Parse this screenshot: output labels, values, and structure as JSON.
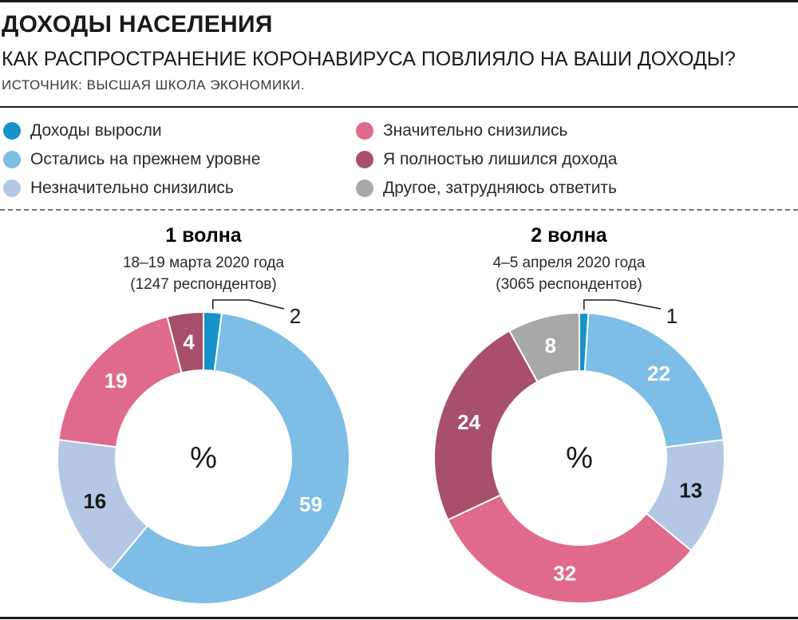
{
  "header": {
    "title": "ДОХОДЫ НАСЕЛЕНИЯ",
    "subtitle": "КАК РАСПРОСТРАНЕНИЕ КОРОНАВИРУСА ПОВЛИЯЛО НА ВАШИ ДОХОДЫ?",
    "source": "ИСТОЧНИК: ВЫСШАЯ ШКОЛА ЭКОНОМИКИ."
  },
  "legend": [
    {
      "label": "Доходы выросли",
      "color": "#1793c9"
    },
    {
      "label": "Остались на прежнем уровне",
      "color": "#7dbde6"
    },
    {
      "label": "Незначительно снизились",
      "color": "#b4c8e6"
    },
    {
      "label": "Значительно снизились",
      "color": "#e06a8b"
    },
    {
      "label": "Я полностью лишился дохода",
      "color": "#a8506b"
    },
    {
      "label": "Другое, затрудняюсь ответить",
      "color": "#a8a8a8"
    }
  ],
  "chart_data": [
    {
      "type": "pie",
      "title": "1 волна",
      "dates": "18–19 марта 2020 года",
      "respondents": "(1247 респондентов)",
      "center_label": "%",
      "categories": [
        "Доходы выросли",
        "Остались на прежнем уровне",
        "Незначительно снизились",
        "Значительно снизились",
        "Я полностью лишился дохода"
      ],
      "values": [
        2,
        59,
        16,
        19,
        4
      ]
    },
    {
      "type": "pie",
      "title": "2 волна",
      "dates": "4–5 апреля 2020 года",
      "respondents": "(3065 респондентов)",
      "center_label": "%",
      "categories": [
        "Доходы выросли",
        "Остались на прежнем уровне",
        "Незначительно снизились",
        "Значительно снизились",
        "Я полностью лишился дохода",
        "Другое, затрудняюсь ответить"
      ],
      "values": [
        1,
        22,
        13,
        32,
        24,
        8
      ]
    }
  ]
}
